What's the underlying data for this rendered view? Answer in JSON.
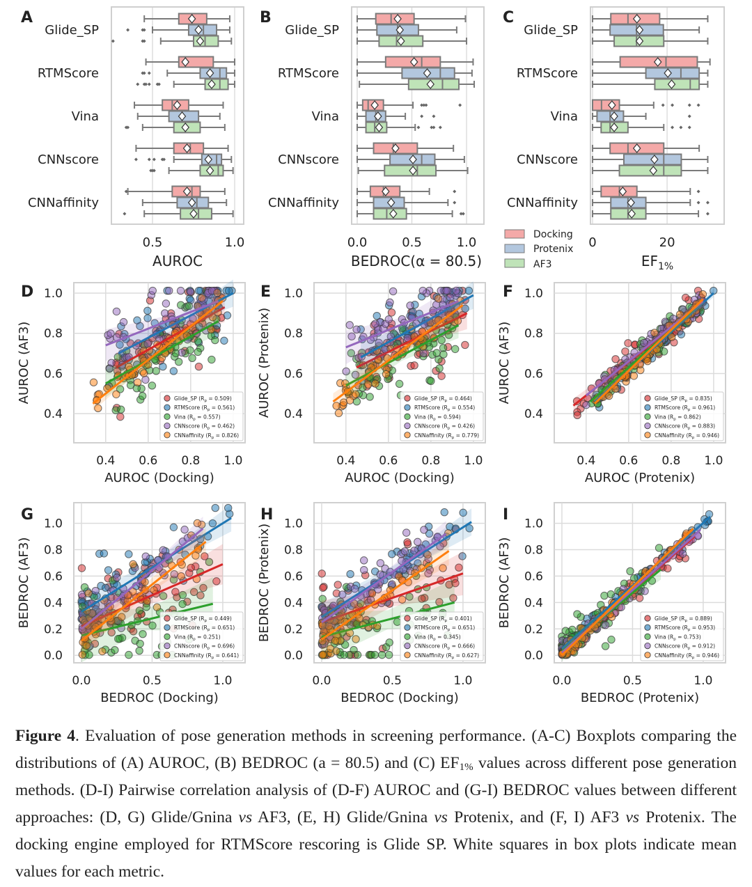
{
  "panel_letters": {
    "A": "A",
    "B": "B",
    "C": "C",
    "D": "D",
    "E": "E",
    "F": "F",
    "G": "G",
    "H": "H",
    "I": "I"
  },
  "legend_box": {
    "docking": "Docking",
    "protenix": "Protenix",
    "af3": "AF3"
  },
  "colors": {
    "docking": "#f4a9a8",
    "protenix": "#b3c7de",
    "af3": "#bfe3b8",
    "box_edge": "#7a7a7a",
    "Glide_SP": "#d62728",
    "RTMScore": "#1f77b4",
    "Vina": "#2ca02c",
    "CNNscore": "#9467bd",
    "CNNaffinity": "#ff7f0e"
  },
  "chart_data": [
    {
      "id": "A",
      "type": "boxplot",
      "xlabel": "AUROC",
      "xlim": [
        0.25,
        1.055
      ],
      "xticks": [
        0.5,
        1.0
      ],
      "xtick_labels": [
        "0.5",
        "1.0"
      ],
      "categories": [
        "Glide_SP",
        "RTMScore",
        "Vina",
        "CNNscore",
        "CNNaffinity"
      ],
      "groups": [
        "Docking",
        "Protenix",
        "AF3"
      ],
      "stats_format": "[whisker_low, q1, median, q3, whisker_high, mean, outliers]",
      "stats": [
        [
          [
            0.45,
            0.66,
            0.74,
            0.83,
            0.97,
            0.74,
            []
          ],
          [
            0.5,
            0.72,
            0.81,
            0.89,
            0.97,
            0.78,
            [
              0.35,
              0.44,
              0.45
            ]
          ],
          [
            0.55,
            0.75,
            0.82,
            0.9,
            0.98,
            0.79,
            [
              0.26,
              0.44,
              0.45
            ]
          ]
        ],
        [
          [
            0.46,
            0.66,
            0.7,
            0.87,
            1.0,
            0.7,
            []
          ],
          [
            0.59,
            0.79,
            0.91,
            0.95,
            1.0,
            0.85,
            [
              0.44,
              0.45,
              0.48
            ]
          ],
          [
            0.63,
            0.82,
            0.91,
            0.96,
            1.0,
            0.86,
            [
              0.41,
              0.45,
              0.46,
              0.48,
              0.53,
              0.54
            ]
          ]
        ],
        [
          [
            0.39,
            0.56,
            0.62,
            0.72,
            0.93,
            0.65,
            []
          ],
          [
            0.41,
            0.6,
            0.68,
            0.78,
            0.91,
            0.68,
            []
          ],
          [
            0.44,
            0.63,
            0.7,
            0.79,
            0.94,
            0.7,
            [
              0.34,
              0.35
            ]
          ]
        ],
        [
          [
            0.4,
            0.63,
            0.73,
            0.81,
            0.96,
            0.71,
            []
          ],
          [
            0.63,
            0.8,
            0.89,
            0.92,
            0.98,
            0.84,
            [
              0.4,
              0.48,
              0.51,
              0.56,
              0.57
            ]
          ],
          [
            0.6,
            0.79,
            0.9,
            0.93,
            0.99,
            0.85,
            [
              0.49,
              0.5,
              0.51
            ]
          ]
        ],
        [
          [
            0.35,
            0.62,
            0.74,
            0.79,
            0.94,
            0.71,
            [
              0.34
            ]
          ],
          [
            0.44,
            0.65,
            0.77,
            0.84,
            0.95,
            0.74,
            []
          ],
          [
            0.45,
            0.67,
            0.78,
            0.86,
            0.99,
            0.75,
            [
              0.33
            ]
          ]
        ]
      ]
    },
    {
      "id": "B",
      "type": "boxplot",
      "xlabel": "BEDROC(α = 80.5)",
      "xlim": [
        -0.051,
        1.159
      ],
      "xticks": [
        0.0,
        0.5,
        1.0
      ],
      "xtick_labels": [
        "0.0",
        "0.5",
        "1.0"
      ],
      "categories": [
        "Glide_SP",
        "RTMScore",
        "Vina",
        "CNNscore",
        "CNNaffinity"
      ],
      "groups": [
        "Docking",
        "Protenix",
        "AF3"
      ],
      "stats": [
        [
          [
            0.0,
            0.17,
            0.31,
            0.52,
            0.99,
            0.37,
            []
          ],
          [
            0.0,
            0.18,
            0.37,
            0.56,
            0.91,
            0.39,
            []
          ],
          [
            0.0,
            0.2,
            0.36,
            0.6,
            1.0,
            0.4,
            []
          ]
        ],
        [
          [
            0.0,
            0.26,
            0.59,
            0.76,
            1.06,
            0.52,
            []
          ],
          [
            0.0,
            0.41,
            0.76,
            0.89,
            1.05,
            0.64,
            []
          ],
          [
            0.02,
            0.47,
            0.78,
            0.93,
            1.07,
            0.67,
            []
          ]
        ],
        [
          [
            0.0,
            0.05,
            0.1,
            0.24,
            0.51,
            0.16,
            [
              0.59,
              0.61,
              0.63,
              0.94
            ]
          ],
          [
            0.0,
            0.08,
            0.17,
            0.26,
            0.44,
            0.19,
            [
              0.59,
              0.7
            ]
          ],
          [
            0.0,
            0.08,
            0.16,
            0.27,
            0.53,
            0.2,
            [
              0.56,
              0.68,
              0.7,
              0.76
            ]
          ]
        ],
        [
          [
            0.0,
            0.15,
            0.33,
            0.55,
            0.88,
            0.35,
            []
          ],
          [
            0.0,
            0.3,
            0.59,
            0.71,
            0.98,
            0.51,
            []
          ],
          [
            0.01,
            0.25,
            0.55,
            0.72,
            1.01,
            0.51,
            []
          ]
        ],
        [
          [
            0.0,
            0.12,
            0.24,
            0.39,
            0.66,
            0.26,
            [
              0.89
            ]
          ],
          [
            0.0,
            0.15,
            0.31,
            0.43,
            0.83,
            0.31,
            [
              0.89
            ]
          ],
          [
            0.0,
            0.15,
            0.27,
            0.45,
            0.87,
            0.33,
            [
              0.95,
              0.97
            ]
          ]
        ]
      ]
    },
    {
      "id": "C",
      "type": "boxplot",
      "xlabel": "EF",
      "xlabel_sub": "1%",
      "xlim": [
        -0.56,
        35.3
      ],
      "xticks": [
        0,
        20
      ],
      "xtick_labels": [
        "0",
        "20"
      ],
      "categories": [
        "Glide_SP",
        "RTMScore",
        "Vina",
        "CNNscore",
        "CNNaffinity"
      ],
      "groups": [
        "Docking",
        "Protenix",
        "AF3"
      ],
      "stats": [
        [
          [
            0,
            4.9,
            9.5,
            18.0,
            30.9,
            11.9,
            []
          ],
          [
            0,
            4.7,
            11.8,
            19.0,
            28.6,
            12.6,
            []
          ],
          [
            0,
            5.8,
            11.8,
            19.1,
            30.9,
            12.6,
            []
          ]
        ],
        [
          [
            0,
            7.4,
            19.7,
            28.1,
            31.5,
            17.5,
            []
          ],
          [
            0,
            14.3,
            23.7,
            28.6,
            30.9,
            20.2,
            []
          ],
          [
            0,
            16.7,
            26.2,
            28.6,
            30.9,
            21.2,
            []
          ]
        ],
        [
          [
            0,
            0,
            2.4,
            7.2,
            16.4,
            5.2,
            [
              18.9,
              21.4,
              26.0,
              28.4
            ]
          ],
          [
            0,
            1.2,
            4.7,
            8.3,
            14.3,
            5.8,
            [
              26.0
            ]
          ],
          [
            0,
            2.3,
            4.7,
            9.5,
            19.1,
            5.8,
            [
              21.4,
              23.7,
              26.0
            ]
          ]
        ],
        [
          [
            0,
            4.7,
            9.5,
            19.1,
            28.6,
            11.9,
            []
          ],
          [
            0,
            8.4,
            19.1,
            23.8,
            30.9,
            16.6,
            []
          ],
          [
            0,
            7.2,
            19.1,
            23.8,
            30.9,
            16.3,
            []
          ]
        ],
        [
          [
            0,
            2.3,
            7.2,
            11.9,
            26.2,
            8.1,
            [
              28.4
            ]
          ],
          [
            0,
            4.9,
            9.5,
            14.3,
            26.2,
            10.3,
            [
              28.4,
              30.9
            ]
          ],
          [
            0,
            4.9,
            9.5,
            14.3,
            28.4,
            10.5,
            [
              30.9
            ]
          ]
        ]
      ]
    },
    {
      "id": "D",
      "type": "scatter",
      "xlabel": "AUROC (Docking)",
      "ylabel": "AUROC (AF3)",
      "xlim": [
        0.25,
        1.056
      ],
      "ylim": [
        0.255,
        1.052
      ],
      "xticks": [
        0.4,
        0.6,
        0.8,
        1.0
      ],
      "yticks": [
        0.4,
        0.6,
        0.8,
        1.0
      ],
      "tick_labels": [
        "0.4",
        "0.6",
        "0.8",
        "1.0"
      ],
      "series": [
        {
          "name": "Glide_SP",
          "rp": "0.509",
          "fit": [
            0.45,
            0.63,
            0.96,
            0.93
          ]
        },
        {
          "name": "RTMScore",
          "rp": "0.561",
          "fit": [
            0.46,
            0.7,
            1.0,
            1.0
          ]
        },
        {
          "name": "Vina",
          "rp": "0.557",
          "fit": [
            0.4,
            0.55,
            0.93,
            0.86
          ]
        },
        {
          "name": "CNNscore",
          "rp": "0.462",
          "fit": [
            0.4,
            0.74,
            0.93,
            0.96
          ]
        },
        {
          "name": "CNNaffinity",
          "rp": "0.826",
          "fit": [
            0.34,
            0.45,
            0.95,
            0.96
          ]
        }
      ]
    },
    {
      "id": "E",
      "type": "scatter",
      "xlabel": "AUROC (Docking)",
      "ylabel": "AUROC (Protenix)",
      "xlim": [
        0.25,
        1.056
      ],
      "ylim": [
        0.255,
        1.052
      ],
      "xticks": [
        0.4,
        0.6,
        0.8,
        1.0
      ],
      "yticks": [
        0.4,
        0.6,
        0.8,
        1.0
      ],
      "tick_labels": [
        "0.4",
        "0.6",
        "0.8",
        "1.0"
      ],
      "series": [
        {
          "name": "Glide_SP",
          "rp": "0.464",
          "fit": [
            0.45,
            0.63,
            0.97,
            0.9
          ]
        },
        {
          "name": "RTMScore",
          "rp": "0.554",
          "fit": [
            0.47,
            0.68,
            1.0,
            0.99
          ]
        },
        {
          "name": "Vina",
          "rp": "0.594",
          "fit": [
            0.4,
            0.54,
            0.93,
            0.84
          ]
        },
        {
          "name": "CNNscore",
          "rp": "0.426",
          "fit": [
            0.4,
            0.73,
            0.93,
            0.96
          ]
        },
        {
          "name": "CNNaffinity",
          "rp": "0.779",
          "fit": [
            0.34,
            0.46,
            0.95,
            0.94
          ]
        }
      ]
    },
    {
      "id": "F",
      "type": "scatter",
      "xlabel": "AUROC (Protenix)",
      "ylabel": "AUROC (AF3)",
      "xlim": [
        0.25,
        1.056
      ],
      "ylim": [
        0.255,
        1.052
      ],
      "xticks": [
        0.4,
        0.6,
        0.8,
        1.0
      ],
      "yticks": [
        0.4,
        0.6,
        0.8,
        1.0
      ],
      "tick_labels": [
        "0.4",
        "0.6",
        "0.8",
        "1.0"
      ],
      "series": [
        {
          "name": "Glide_SP",
          "rp": "0.835",
          "fit": [
            0.34,
            0.44,
            0.96,
            0.96
          ]
        },
        {
          "name": "RTMScore",
          "rp": "0.961",
          "fit": [
            0.44,
            0.46,
            1.0,
            1.0
          ]
        },
        {
          "name": "Vina",
          "rp": "0.862",
          "fit": [
            0.42,
            0.46,
            0.95,
            0.96
          ]
        },
        {
          "name": "CNNscore",
          "rp": "0.883",
          "fit": [
            0.4,
            0.49,
            0.95,
            0.96
          ]
        },
        {
          "name": "CNNaffinity",
          "rp": "0.946",
          "fit": [
            0.44,
            0.45,
            0.95,
            0.97
          ]
        }
      ]
    },
    {
      "id": "G",
      "type": "scatter",
      "xlabel": "BEDROC (Docking)",
      "ylabel": "BEDROC (AF3)",
      "xlim": [
        -0.054,
        1.158
      ],
      "ylim": [
        -0.057,
        1.156
      ],
      "xticks": [
        0.0,
        0.5,
        1.0
      ],
      "yticks": [
        0.0,
        0.2,
        0.4,
        0.6,
        0.8,
        1.0
      ],
      "xtick_labels": [
        "0.0",
        "0.5",
        "1.0"
      ],
      "ytick_labels": [
        "0.0",
        "0.2",
        "0.4",
        "0.6",
        "0.8",
        "1.0"
      ],
      "series": [
        {
          "name": "Glide_SP",
          "rp": "0.449",
          "fit": [
            0.0,
            0.22,
            1.0,
            0.69
          ]
        },
        {
          "name": "RTMScore",
          "rp": "0.651",
          "fit": [
            0.0,
            0.33,
            1.06,
            1.04
          ]
        },
        {
          "name": "Vina",
          "rp": "0.251",
          "fit": [
            0.0,
            0.15,
            0.93,
            0.39
          ]
        },
        {
          "name": "CNNscore",
          "rp": "0.696",
          "fit": [
            0.0,
            0.2,
            0.86,
            0.96
          ]
        },
        {
          "name": "CNNaffinity",
          "rp": "0.641",
          "fit": [
            0.0,
            0.11,
            0.88,
            0.86
          ]
        }
      ]
    },
    {
      "id": "H",
      "type": "scatter",
      "xlabel": "BEDROC (Docking)",
      "ylabel": "BEDROC (Protenix)",
      "xlim": [
        -0.054,
        1.158
      ],
      "ylim": [
        -0.057,
        1.156
      ],
      "xticks": [
        0.0,
        0.5,
        1.0
      ],
      "yticks": [
        0.0,
        0.2,
        0.4,
        0.6,
        0.8,
        1.0
      ],
      "xtick_labels": [
        "0.0",
        "0.5",
        "1.0"
      ],
      "ytick_labels": [
        "0.0",
        "0.2",
        "0.4",
        "0.6",
        "0.8",
        "1.0"
      ],
      "series": [
        {
          "name": "Glide_SP",
          "rp": "0.401",
          "fit": [
            0.0,
            0.25,
            1.0,
            0.62
          ]
        },
        {
          "name": "RTMScore",
          "rp": "0.651",
          "fit": [
            0.0,
            0.29,
            1.06,
            1.01
          ]
        },
        {
          "name": "Vina",
          "rp": "0.345",
          "fit": [
            0.0,
            0.14,
            0.94,
            0.4
          ]
        },
        {
          "name": "CNNscore",
          "rp": "0.666",
          "fit": [
            0.0,
            0.25,
            0.88,
            0.92
          ]
        },
        {
          "name": "CNNaffinity",
          "rp": "0.627",
          "fit": [
            0.0,
            0.12,
            0.9,
            0.79
          ]
        }
      ]
    },
    {
      "id": "I",
      "type": "scatter",
      "xlabel": "BEDROC (Protenix)",
      "ylabel": "BEDROC (AF3)",
      "xlim": [
        -0.054,
        1.158
      ],
      "ylim": [
        -0.057,
        1.156
      ],
      "xticks": [
        0.0,
        0.5,
        1.0
      ],
      "yticks": [
        0.0,
        0.2,
        0.4,
        0.6,
        0.8,
        1.0
      ],
      "xtick_labels": [
        "0.0",
        "0.5",
        "1.0"
      ],
      "ytick_labels": [
        "0.0",
        "0.2",
        "0.4",
        "0.6",
        "0.8",
        "1.0"
      ],
      "series": [
        {
          "name": "Glide_SP",
          "rp": "0.889",
          "fit": [
            0.0,
            0.02,
            0.94,
            0.9
          ]
        },
        {
          "name": "RTMScore",
          "rp": "0.953",
          "fit": [
            0.0,
            0.05,
            1.05,
            1.05
          ]
        },
        {
          "name": "Vina",
          "rp": "0.753",
          "fit": [
            0.0,
            0.03,
            0.7,
            0.65
          ]
        },
        {
          "name": "CNNscore",
          "rp": "0.912",
          "fit": [
            0.0,
            0.02,
            0.98,
            0.95
          ]
        },
        {
          "name": "CNNaffinity",
          "rp": "0.946",
          "fit": [
            0.0,
            0.0,
            0.93,
            0.96
          ]
        }
      ]
    }
  ],
  "caption": {
    "label": "Figure 4",
    "p1": ". Evaluation of pose generation methods in screening performance. (A-C) Boxplots comparing the distributions of (A) AUROC, (B) BEDROC (a = 80.5) and (C) EF",
    "sub": "1%",
    "p2": " values across different pose generation methods. (D-I) Pairwise correlation analysis of (D-F) AUROC and (G-I) BEDROC values between different approaches: (D, G) Glide/Gnina ",
    "vs": "vs",
    "p3": " AF3, (E, H) Glide/Gnina ",
    "p4": " Protenix, and (F, I) AF3 ",
    "p5": " Protenix. The docking engine employed for RTMScore rescoring is Glide SP. White squares in box plots indicate mean values for each metric."
  }
}
